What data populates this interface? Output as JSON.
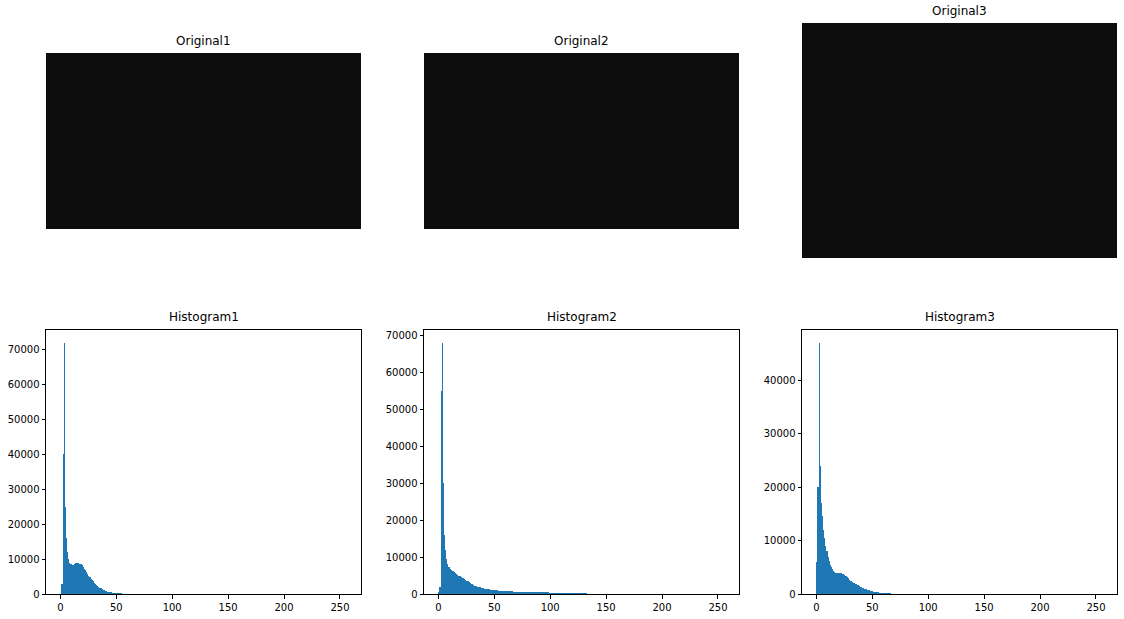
{
  "images": [
    {
      "title": "Original1"
    },
    {
      "title": "Original2"
    },
    {
      "title": "Original3"
    }
  ],
  "chart_data": [
    {
      "type": "histogram",
      "title": "Histogram1",
      "color": "#1f77b4",
      "grid": false,
      "bins": [
        0,
        1,
        2,
        3,
        4,
        5,
        6,
        7,
        8,
        9,
        10,
        11,
        12,
        13,
        14,
        15,
        16,
        17,
        18,
        19,
        20,
        21,
        22,
        23,
        24,
        25,
        26,
        27,
        28,
        29,
        30,
        31,
        32,
        33,
        34,
        35,
        36,
        37,
        38,
        39,
        40,
        41,
        42,
        43,
        44,
        45,
        46,
        47,
        48,
        49,
        50,
        51,
        52,
        53,
        54,
        55,
        56,
        57,
        58,
        59,
        60,
        61,
        62,
        63,
        64,
        65,
        66,
        67,
        68,
        69,
        70,
        71,
        72,
        73,
        74,
        75,
        76,
        77,
        78,
        79,
        80,
        81,
        82,
        83,
        84,
        85,
        86,
        87,
        88,
        89,
        90,
        91,
        92,
        93,
        94,
        95,
        96,
        97,
        98,
        99,
        100,
        101,
        102,
        103,
        104,
        105,
        106,
        107,
        108,
        109,
        110
      ],
      "counts": [
        0,
        3000,
        40000,
        72000,
        25000,
        16000,
        12000,
        10000,
        9000,
        8500,
        8200,
        8400,
        8600,
        8800,
        9000,
        8900,
        8800,
        8700,
        8500,
        8200,
        7800,
        7300,
        6800,
        6200,
        5700,
        5200,
        4800,
        4400,
        4000,
        3600,
        3200,
        2900,
        2600,
        2300,
        2000,
        1800,
        1600,
        1400,
        1200,
        1050,
        900,
        800,
        700,
        600,
        520,
        450,
        400,
        350,
        300,
        260,
        230,
        200,
        180,
        160,
        150,
        140,
        130,
        120,
        110,
        100,
        95,
        90,
        85,
        80,
        80,
        75,
        70,
        70,
        65,
        60,
        60,
        55,
        55,
        50,
        50,
        45,
        45,
        40,
        40,
        40,
        35,
        35,
        35,
        30,
        30,
        30,
        25,
        25,
        25,
        20,
        20,
        20,
        20,
        15,
        15,
        15,
        15,
        10,
        10,
        10,
        8,
        6,
        5,
        4,
        3,
        2,
        2,
        1,
        1,
        1
      ],
      "xlim": [
        -12.8,
        268.8
      ],
      "xticks": [
        0,
        50,
        100,
        150,
        200,
        250
      ],
      "ylim": [
        0,
        75600
      ],
      "yticks": [
        0,
        10000,
        20000,
        30000,
        40000,
        50000,
        60000,
        70000
      ]
    },
    {
      "type": "histogram",
      "title": "Histogram2",
      "color": "#1f77b4",
      "grid": false,
      "bins": [
        0,
        1,
        2,
        3,
        4,
        5,
        6,
        7,
        8,
        9,
        10,
        11,
        12,
        13,
        14,
        15,
        16,
        17,
        18,
        19,
        20,
        21,
        22,
        23,
        24,
        25,
        26,
        27,
        28,
        29,
        30,
        31,
        32,
        33,
        34,
        35,
        36,
        37,
        38,
        39,
        40,
        41,
        42,
        43,
        44,
        45,
        46,
        47,
        48,
        49,
        50,
        51,
        52,
        53,
        54,
        55,
        56,
        57,
        58,
        59,
        60,
        61,
        62,
        63,
        64,
        65,
        66,
        67,
        68,
        69,
        70,
        71,
        72,
        73,
        74,
        75,
        76,
        77,
        78,
        79,
        80,
        81,
        82,
        83,
        84,
        85,
        86,
        87,
        88,
        89,
        90,
        91,
        92,
        93,
        94,
        95,
        96,
        97,
        98,
        99,
        100,
        101,
        102,
        103,
        104,
        105,
        106,
        107,
        108,
        109,
        110,
        111,
        112,
        113,
        114,
        115,
        116,
        117,
        118,
        119,
        120,
        121,
        122,
        123,
        124,
        125,
        126,
        127,
        128,
        129,
        130,
        131,
        132,
        133,
        134,
        135,
        136,
        137,
        138,
        139,
        140
      ],
      "counts": [
        500,
        2000,
        55000,
        68000,
        30000,
        16000,
        12000,
        9500,
        8000,
        7200,
        6800,
        6500,
        6300,
        6100,
        5900,
        5700,
        5500,
        5200,
        5000,
        4800,
        4600,
        4400,
        4200,
        4000,
        3800,
        3600,
        3400,
        3200,
        3000,
        2800,
        2600,
        2450,
        2300,
        2200,
        2100,
        2000,
        1900,
        1800,
        1700,
        1600,
        1500,
        1450,
        1400,
        1350,
        1300,
        1250,
        1200,
        1150,
        1100,
        1050,
        1000,
        980,
        960,
        940,
        920,
        900,
        880,
        860,
        840,
        820,
        800,
        780,
        760,
        740,
        720,
        700,
        680,
        660,
        640,
        620,
        600,
        590,
        580,
        570,
        560,
        550,
        540,
        530,
        520,
        510,
        500,
        495,
        490,
        485,
        480,
        475,
        470,
        465,
        460,
        455,
        450,
        445,
        440,
        435,
        430,
        425,
        420,
        415,
        410,
        405,
        400,
        395,
        390,
        385,
        380,
        375,
        370,
        365,
        360,
        355,
        350,
        345,
        340,
        335,
        330,
        325,
        320,
        315,
        310,
        305,
        300,
        295,
        290,
        285,
        280,
        275,
        270,
        265,
        260,
        255,
        250,
        240,
        200,
        100,
        30,
        10,
        5,
        2,
        1,
        0
      ],
      "xlim": [
        -12.8,
        268.8
      ],
      "xticks": [
        0,
        50,
        100,
        150,
        200,
        250
      ],
      "ylim": [
        0,
        71400
      ],
      "yticks": [
        0,
        10000,
        20000,
        30000,
        40000,
        50000,
        60000,
        70000
      ]
    },
    {
      "type": "histogram",
      "title": "Histogram3",
      "color": "#1f77b4",
      "grid": false,
      "bins": [
        0,
        1,
        2,
        3,
        4,
        5,
        6,
        7,
        8,
        9,
        10,
        11,
        12,
        13,
        14,
        15,
        16,
        17,
        18,
        19,
        20,
        21,
        22,
        23,
        24,
        25,
        26,
        27,
        28,
        29,
        30,
        31,
        32,
        33,
        34,
        35,
        36,
        37,
        38,
        39,
        40,
        41,
        42,
        43,
        44,
        45,
        46,
        47,
        48,
        49,
        50,
        51,
        52,
        53,
        54,
        55,
        56,
        57,
        58,
        59,
        60,
        61,
        62,
        63,
        64,
        65,
        66,
        67,
        68,
        69,
        70,
        71,
        72,
        73,
        74,
        75,
        76,
        77,
        78,
        79,
        80,
        81,
        82,
        83,
        84,
        85,
        86,
        87,
        88,
        89,
        90,
        91,
        92,
        93,
        94,
        95,
        96,
        97,
        98,
        99,
        100
      ],
      "counts": [
        6000,
        20000,
        47000,
        24000,
        17000,
        14500,
        12000,
        10500,
        9000,
        8000,
        7000,
        6200,
        5500,
        5000,
        4600,
        4300,
        4100,
        4000,
        3900,
        3900,
        4000,
        3950,
        3900,
        3800,
        3700,
        3500,
        3300,
        3100,
        2900,
        2700,
        2500,
        2400,
        2250,
        2100,
        2000,
        1850,
        1700,
        1600,
        1500,
        1400,
        1300,
        1200,
        1100,
        1000,
        900,
        820,
        750,
        680,
        620,
        560,
        500,
        450,
        400,
        360,
        320,
        290,
        260,
        230,
        200,
        180,
        160,
        145,
        130,
        120,
        110,
        100,
        95,
        90,
        85,
        80,
        75,
        70,
        65,
        60,
        55,
        50,
        45,
        40,
        35,
        30,
        28,
        26,
        24,
        22,
        20,
        18,
        16,
        14,
        12,
        10,
        9,
        8,
        7,
        6,
        5,
        4,
        3,
        2,
        1,
        1
      ],
      "xlim": [
        -12.8,
        268.8
      ],
      "xticks": [
        0,
        50,
        100,
        150,
        200,
        250
      ],
      "ylim": [
        0,
        49350
      ],
      "yticks": [
        0,
        10000,
        20000,
        30000,
        40000
      ]
    }
  ]
}
